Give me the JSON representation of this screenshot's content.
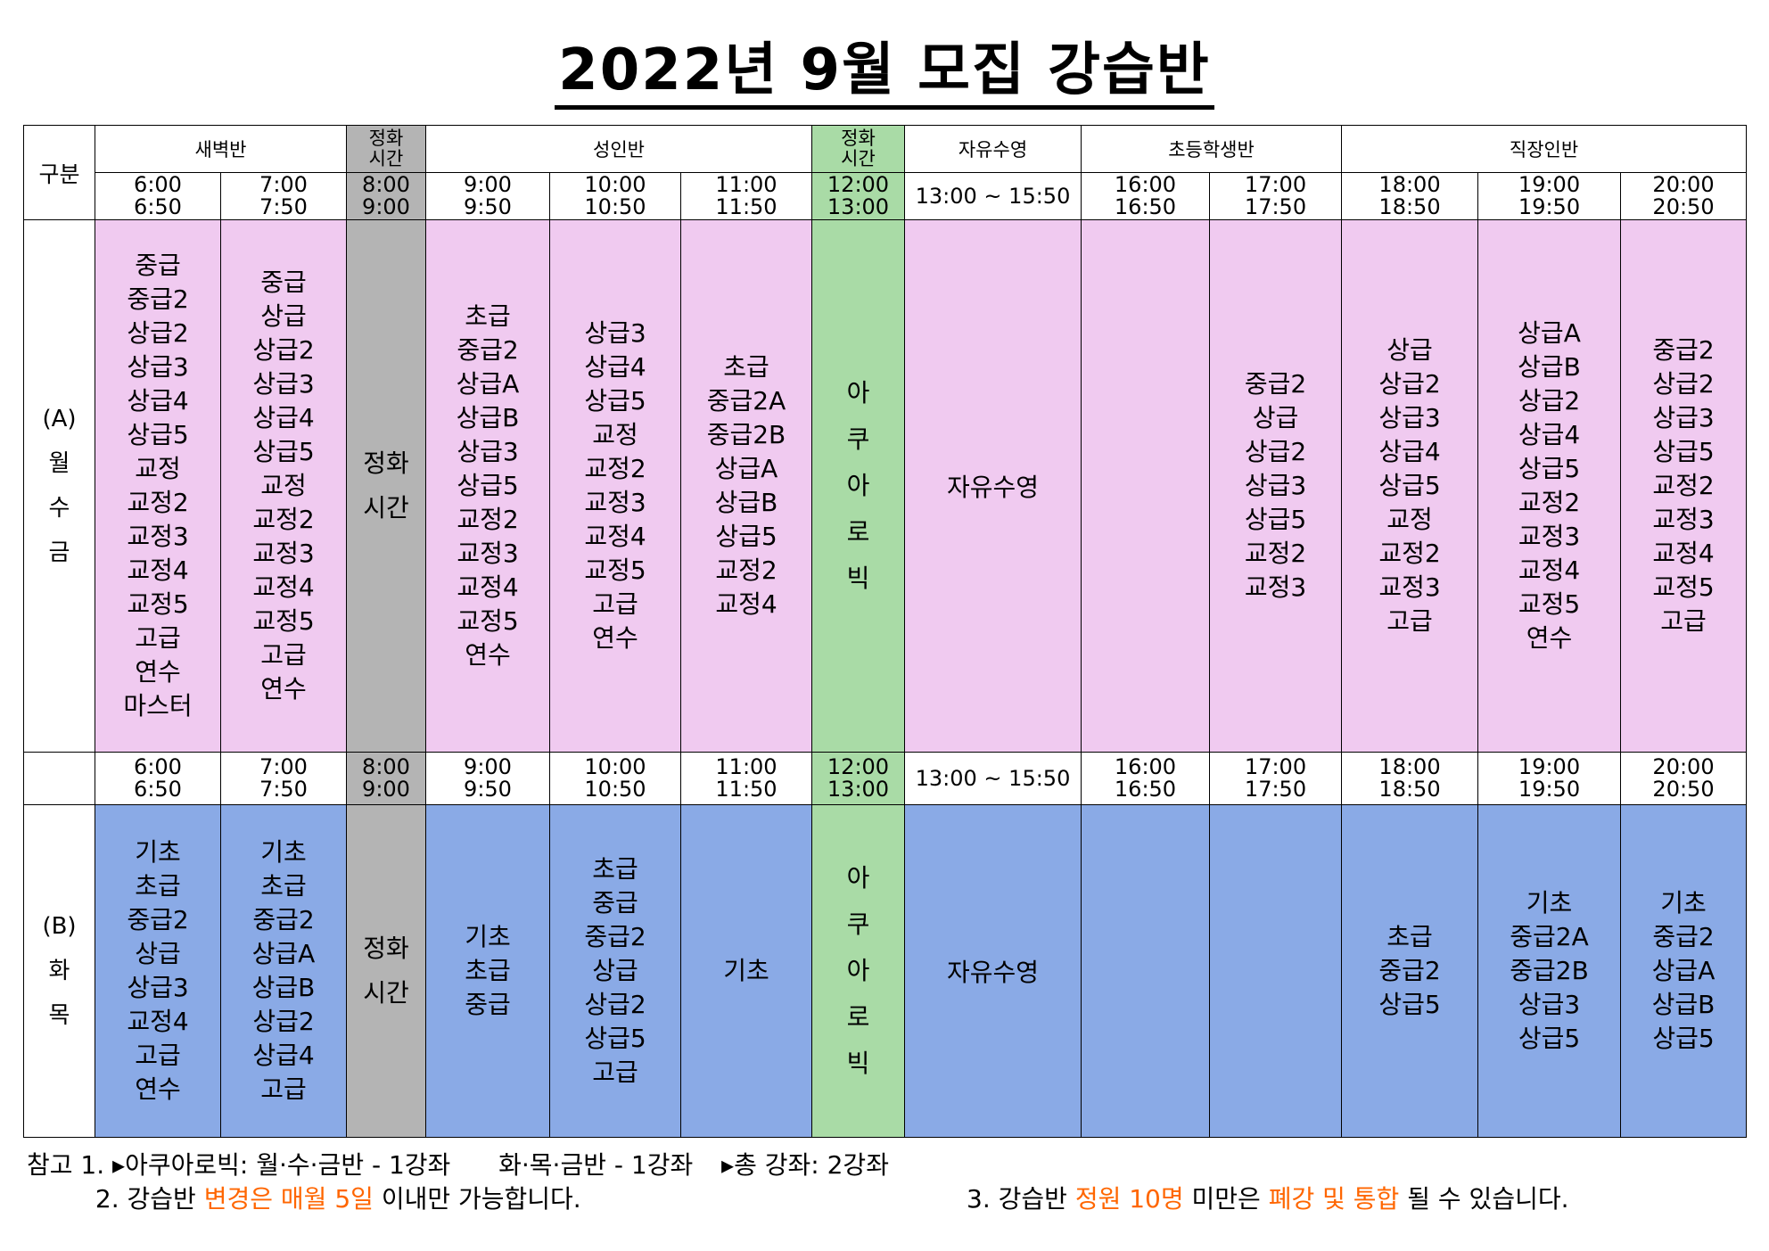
{
  "title": "2022년 9월 모집 강습반",
  "header": {
    "gubun": "구분",
    "saebyeok": "새벽반",
    "rest": [
      "정화",
      "시간"
    ],
    "adult": "성인반",
    "free_swim": "자유수영",
    "elementary": "초등학생반",
    "worker": "직장인반"
  },
  "times": [
    [
      "6:00",
      "6:50"
    ],
    [
      "7:00",
      "7:50"
    ],
    [
      "8:00",
      "9:00"
    ],
    [
      "9:00",
      "9:50"
    ],
    [
      "10:00",
      "10:50"
    ],
    [
      "11:00",
      "11:50"
    ],
    [
      "12:00",
      "13:00"
    ],
    [
      "13:00 ~ 15:50"
    ],
    [
      "16:00",
      "16:50"
    ],
    [
      "17:00",
      "17:50"
    ],
    [
      "18:00",
      "18:50"
    ],
    [
      "19:00",
      "19:50"
    ],
    [
      "20:00",
      "20:50"
    ]
  ],
  "groupA": {
    "label": [
      "(A)",
      "월",
      "수",
      "금"
    ],
    "rest_label": [
      "정화",
      "시간"
    ],
    "aqua_label": [
      "아",
      "쿠",
      "아",
      "로",
      "빅"
    ],
    "free_swim": "자유수영",
    "classes": [
      [
        "중급",
        "중급2",
        "상급2",
        "상급3",
        "상급4",
        "상급5",
        "교정",
        "교정2",
        "교정3",
        "교정4",
        "교정5",
        "고급",
        "연수",
        "마스터"
      ],
      [
        "중급",
        "상급",
        "상급2",
        "상급3",
        "상급4",
        "상급5",
        "교정",
        "교정2",
        "교정3",
        "교정4",
        "교정5",
        "고급",
        "연수"
      ],
      [
        "초급",
        "중급2",
        "상급A",
        "상급B",
        "상급3",
        "상급5",
        "교정2",
        "교정3",
        "교정4",
        "교정5",
        "연수"
      ],
      [
        "상급3",
        "상급4",
        "상급5",
        "교정",
        "교정2",
        "교정3",
        "교정4",
        "교정5",
        "고급",
        "연수"
      ],
      [
        "초급",
        "중급2A",
        "중급2B",
        "상급A",
        "상급B",
        "상급5",
        "교정2",
        "교정4"
      ],
      [],
      [
        "중급2",
        "상급",
        "상급2",
        "상급3",
        "상급5",
        "교정2",
        "교정3"
      ],
      [
        "상급",
        "상급2",
        "상급3",
        "상급4",
        "상급5",
        "교정",
        "교정2",
        "교정3",
        "고급"
      ],
      [
        "상급A",
        "상급B",
        "상급2",
        "상급4",
        "상급5",
        "교정2",
        "교정3",
        "교정4",
        "교정5",
        "연수"
      ],
      [
        "중급2",
        "상급2",
        "상급3",
        "상급5",
        "교정2",
        "교정3",
        "교정4",
        "교정5",
        "고급"
      ]
    ]
  },
  "groupB": {
    "label": [
      "(B)",
      "화",
      "목"
    ],
    "rest_label": [
      "정화",
      "시간"
    ],
    "aqua_label": [
      "아",
      "쿠",
      "아",
      "로",
      "빅"
    ],
    "free_swim": "자유수영",
    "classes": [
      [
        "기초",
        "초급",
        "중급2",
        "상급",
        "상급3",
        "교정4",
        "고급",
        "연수"
      ],
      [
        "기초",
        "초급",
        "중급2",
        "상급A",
        "상급B",
        "상급2",
        "상급4",
        "고급"
      ],
      [
        "기초",
        "초급",
        "중급"
      ],
      [
        "초급",
        "중급",
        "중급2",
        "상급",
        "상급2",
        "상급5",
        "고급"
      ],
      [
        "기초"
      ],
      [],
      [],
      [
        "초급",
        "중급2",
        "상급5"
      ],
      [
        "기초",
        "중급2A",
        "중급2B",
        "상급3",
        "상급5"
      ],
      [
        "기초",
        "중급2",
        "상급A",
        "상급B",
        "상급5"
      ]
    ]
  },
  "notes": {
    "n1_prefix": "참고 1.",
    "n1_a": "▸아쿠아로빅: 월·수·금반 - 1강좌",
    "n1_b": "화·목·금반 - 1강좌",
    "n1_c": "▸총 강좌: 2강좌",
    "n2_a": "2. 강습반",
    "n2_hl": "변경은 매월 5일",
    "n2_b": "이내만 가능합니다.",
    "n3_a": "3. 강습반",
    "n3_hl1": "정원 10명",
    "n3_b": "미만은",
    "n3_hl2": "폐강 및 통합",
    "n3_c": "될 수 있습니다."
  },
  "colors": {
    "groupA_bg": "#f0caf0",
    "groupB_bg": "#8aaae6",
    "rest_bg": "#b4b4b4",
    "aqua_bg": "#a9dba6",
    "highlight": "#ff6600"
  }
}
